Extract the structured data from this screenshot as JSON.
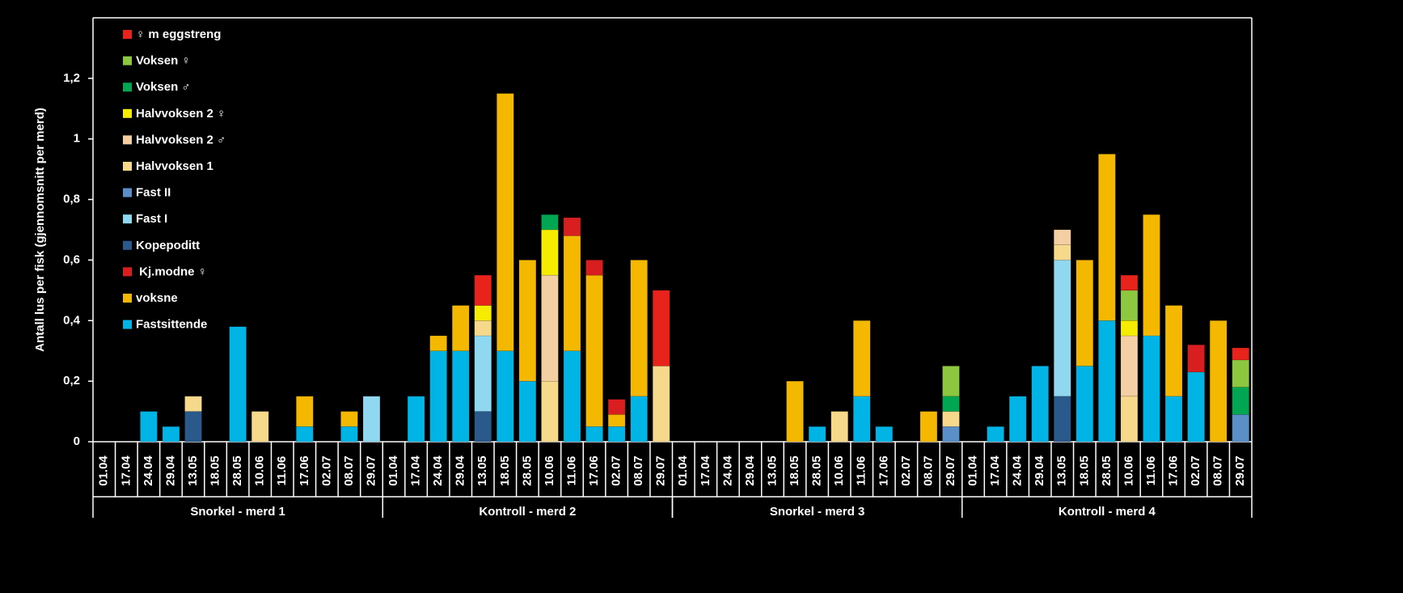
{
  "chart_data": {
    "type": "stacked_bar",
    "y_label": "Antall lus per fisk (gjennomsnitt per merd)",
    "categories": [
      "01.04",
      "17.04",
      "24.04",
      "29.04",
      "13.05",
      "18.05",
      "28.05",
      "10.06",
      "11.06",
      "17.06",
      "02.07",
      "08.07",
      "29.07",
      "01.04",
      "17.04",
      "24.04",
      "29.04",
      "13.05",
      "18.05",
      "28.05",
      "10.06",
      "11.06",
      "17.06",
      "02.07",
      "08.07",
      "29.07",
      "01.04",
      "17.04",
      "24.04",
      "29.04",
      "13.05",
      "18.05",
      "28.05",
      "10.06",
      "11.06",
      "17.06",
      "02.07",
      "08.07",
      "29.07",
      "01.04",
      "17.04",
      "24.04",
      "29.04",
      "13.05",
      "18.05",
      "28.05",
      "10.06",
      "11.06",
      "17.06",
      "02.07",
      "08.07",
      "29.07"
    ],
    "groups": [
      "Snorkel - merd 1",
      "Kontroll - merd 2",
      "Snorkel - merd 3",
      "Kontroll - merd 4"
    ],
    "ylim": [
      0,
      1.4
    ],
    "yticks": [
      0,
      {
        "value": 0.2,
        "label": "0,2"
      },
      {
        "value": 0.4,
        "label": "0,4"
      },
      {
        "value": 0.6,
        "label": "0,6"
      },
      {
        "value": 0.8,
        "label": "0,8"
      },
      1,
      {
        "value": 1.2,
        "label": "1,2"
      }
    ],
    "legend": "upper left",
    "series": [
      {
        "name": "♀ m eggstreng",
        "color": "#e8231b",
        "values": [
          0,
          0,
          0,
          0,
          0,
          0,
          0,
          0,
          0,
          0,
          0,
          0,
          0,
          0,
          0,
          0,
          0,
          0.1,
          0,
          0,
          0,
          0,
          0,
          0,
          0,
          0.25,
          0,
          0,
          0,
          0,
          0,
          0,
          0,
          0,
          0,
          0,
          0,
          0,
          0,
          0,
          0,
          0,
          0,
          0,
          0,
          0,
          0.05,
          0,
          0,
          0,
          0,
          0.04
        ]
      },
      {
        "name": "Voksen ♀",
        "color": "#8dc63f",
        "values": [
          0,
          0,
          0,
          0,
          0,
          0,
          0,
          0,
          0,
          0,
          0,
          0,
          0,
          0,
          0,
          0,
          0,
          0,
          0,
          0,
          0,
          0,
          0,
          0,
          0,
          0,
          0,
          0,
          0,
          0,
          0,
          0,
          0,
          0,
          0,
          0,
          0,
          0,
          0.1,
          0,
          0,
          0,
          0,
          0,
          0,
          0,
          0.1,
          0,
          0,
          0,
          0,
          0.09
        ]
      },
      {
        "name": "Voksen ♂",
        "color": "#00a651",
        "values": [
          0,
          0,
          0,
          0,
          0,
          0,
          0,
          0,
          0,
          0,
          0,
          0,
          0,
          0,
          0,
          0,
          0,
          0,
          0,
          0,
          0.05,
          0,
          0,
          0,
          0,
          0,
          0,
          0,
          0,
          0,
          0,
          0,
          0,
          0,
          0,
          0,
          0,
          0,
          0.05,
          0,
          0,
          0,
          0,
          0,
          0,
          0,
          0,
          0,
          0,
          0,
          0,
          0.09
        ]
      },
      {
        "name": "Halvvoksen 2 ♀",
        "color": "#f5ec00",
        "values": [
          0,
          0,
          0,
          0,
          0,
          0,
          0,
          0,
          0,
          0,
          0,
          0,
          0,
          0,
          0,
          0,
          0,
          0.05,
          0,
          0,
          0.15,
          0,
          0,
          0,
          0,
          0,
          0,
          0,
          0,
          0,
          0,
          0,
          0,
          0,
          0,
          0,
          0,
          0,
          0,
          0,
          0,
          0,
          0,
          0,
          0,
          0,
          0.05,
          0,
          0,
          0,
          0,
          0
        ]
      },
      {
        "name": "Halvvoksen 2 ♂",
        "color": "#f3cfa3",
        "values": [
          0,
          0,
          0,
          0,
          0,
          0,
          0,
          0,
          0,
          0,
          0,
          0,
          0,
          0,
          0,
          0,
          0,
          0,
          0,
          0,
          0.35,
          0,
          0,
          0,
          0,
          0,
          0,
          0,
          0,
          0,
          0,
          0,
          0,
          0,
          0,
          0,
          0,
          0,
          0,
          0,
          0,
          0,
          0,
          0.05,
          0,
          0,
          0.2,
          0,
          0,
          0,
          0,
          0
        ]
      },
      {
        "name": "Halvvoksen 1",
        "color": "#f7d98b",
        "values": [
          0,
          0,
          0,
          0,
          0.05,
          0,
          0,
          0.1,
          0,
          0,
          0,
          0,
          0,
          0,
          0,
          0,
          0,
          0.05,
          0,
          0,
          0.2,
          0,
          0,
          0,
          0,
          0.25,
          0,
          0,
          0,
          0,
          0,
          0,
          0,
          0.1,
          0,
          0,
          0,
          0,
          0.05,
          0,
          0,
          0,
          0,
          0.05,
          0,
          0,
          0.15,
          0,
          0,
          0,
          0,
          0
        ]
      },
      {
        "name": "Fast II",
        "color": "#5b8fc7",
        "values": [
          0,
          0,
          0,
          0,
          0,
          0,
          0,
          0,
          0,
          0,
          0,
          0,
          0,
          0,
          0,
          0,
          0,
          0,
          0,
          0,
          0,
          0,
          0,
          0,
          0,
          0,
          0,
          0,
          0,
          0,
          0,
          0,
          0,
          0,
          0,
          0,
          0,
          0,
          0.05,
          0,
          0,
          0,
          0,
          0,
          0,
          0,
          0,
          0,
          0,
          0,
          0,
          0.09
        ]
      },
      {
        "name": "Fast I",
        "color": "#8fd8f0",
        "values": [
          0,
          0,
          0,
          0,
          0,
          0,
          0,
          0,
          0,
          0,
          0,
          0,
          0.15,
          0,
          0,
          0,
          0,
          0.25,
          0,
          0,
          0,
          0,
          0,
          0,
          0,
          0,
          0,
          0,
          0,
          0,
          0,
          0,
          0,
          0,
          0,
          0,
          0,
          0,
          0,
          0,
          0,
          0,
          0,
          0.45,
          0,
          0,
          0,
          0,
          0,
          0,
          0,
          0
        ]
      },
      {
        "name": "Kopepoditt",
        "color": "#2a5a8c",
        "values": [
          0,
          0,
          0,
          0,
          0.1,
          0,
          0,
          0,
          0,
          0,
          0,
          0,
          0,
          0,
          0,
          0,
          0,
          0.1,
          0,
          0,
          0,
          0,
          0,
          0,
          0,
          0,
          0,
          0,
          0,
          0,
          0,
          0,
          0,
          0,
          0,
          0,
          0,
          0,
          0,
          0,
          0,
          0,
          0,
          0.15,
          0,
          0,
          0,
          0,
          0,
          0,
          0,
          0
        ]
      },
      {
        "name": " Kj.modne ♀",
        "color": "#d81e1e",
        "values": [
          0,
          0,
          0,
          0,
          0,
          0,
          0,
          0,
          0,
          0,
          0,
          0,
          0,
          0,
          0,
          0,
          0,
          0,
          0,
          0,
          0,
          0.06,
          0.05,
          0.05,
          0,
          0,
          0,
          0,
          0,
          0,
          0,
          0,
          0,
          0,
          0,
          0,
          0,
          0,
          0,
          0,
          0,
          0,
          0,
          0,
          0,
          0,
          0,
          0,
          0,
          0.09,
          0,
          0
        ]
      },
      {
        "name": "voksne",
        "color": "#f5b800",
        "values": [
          0,
          0,
          0,
          0,
          0,
          0,
          0,
          0,
          0,
          0.1,
          0,
          0.05,
          0,
          0,
          0,
          0.05,
          0.15,
          0,
          0.85,
          0.4,
          0,
          0.38,
          0.5,
          0.04,
          0.45,
          0,
          0,
          0,
          0,
          0,
          0,
          0.2,
          0,
          0,
          0.25,
          0,
          0,
          0.1,
          0,
          0,
          0,
          0,
          0,
          0,
          0.35,
          0.55,
          0,
          0.4,
          0.3,
          0,
          0.4,
          0
        ]
      },
      {
        "name": "Fastsittende",
        "color": "#00b4e6",
        "values": [
          0,
          0,
          0.1,
          0.05,
          0,
          0,
          0.38,
          0,
          0,
          0.05,
          0,
          0.05,
          0,
          0,
          0.15,
          0.3,
          0.3,
          0,
          0.3,
          0.2,
          0,
          0.3,
          0.05,
          0.05,
          0.15,
          0,
          0,
          0,
          0,
          0,
          0,
          0,
          0.05,
          0,
          0.15,
          0.05,
          0,
          0,
          0,
          0,
          0.05,
          0.15,
          0.25,
          0,
          0.25,
          0.4,
          0,
          0.35,
          0.15,
          0.23,
          0,
          0
        ]
      }
    ]
  }
}
